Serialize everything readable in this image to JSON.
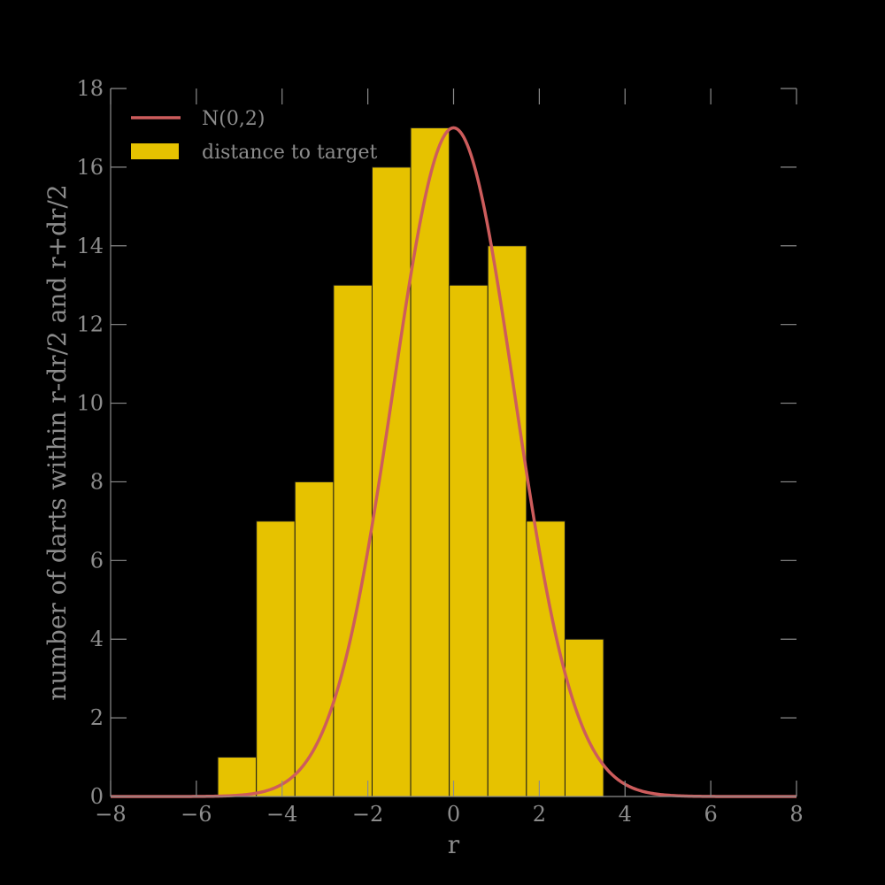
{
  "chart_data": {
    "type": "bar",
    "xlabel": "r",
    "ylabel": "number of darts within r-dr/2 and r+dr/2",
    "xlim": [
      -8,
      8
    ],
    "ylim": [
      0,
      18
    ],
    "xticks": [
      -8,
      -6,
      -4,
      -2,
      0,
      2,
      4,
      6,
      8
    ],
    "xtick_labels": [
      "−8",
      "−6",
      "−4",
      "−2",
      "0",
      "2",
      "4",
      "6",
      "8"
    ],
    "yticks": [
      0,
      2,
      4,
      6,
      8,
      10,
      12,
      14,
      16,
      18
    ],
    "ytick_labels": [
      "0",
      "2",
      "4",
      "6",
      "8",
      "10",
      "12",
      "14",
      "16",
      "18"
    ],
    "grid": false,
    "legend_position": "top-left",
    "series": [
      {
        "name": "distance to target",
        "type": "histogram",
        "color": "#e6c200",
        "bin_edges": [
          -5.5,
          -4.6,
          -3.7,
          -2.8,
          -1.9,
          -1.0,
          -0.1,
          0.8,
          1.7,
          2.6,
          3.5
        ],
        "values": [
          1,
          7,
          8,
          13,
          16,
          17,
          13,
          14,
          7,
          4
        ]
      },
      {
        "name": "N(0,2)",
        "type": "line",
        "color": "#cd5c5c",
        "curve": {
          "mean": 0,
          "sigma": 1.4142,
          "peak": 17
        },
        "x_range": [
          -8,
          8
        ]
      }
    ],
    "colors": {
      "background": "#000000",
      "axis": "#8c8c8c",
      "bar_edge": "#1a1a1a"
    }
  }
}
